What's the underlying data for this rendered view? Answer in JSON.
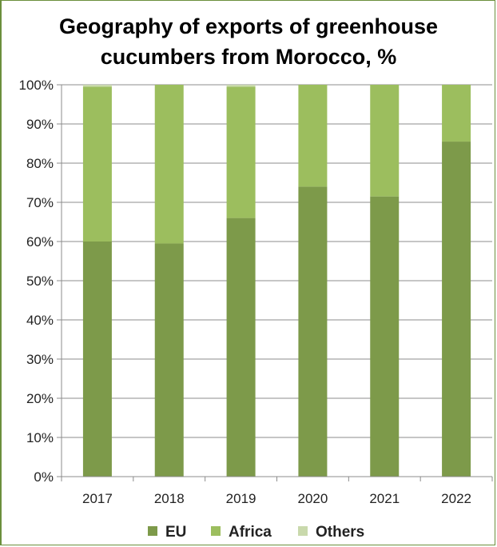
{
  "chart_data": {
    "type": "bar",
    "stacked": true,
    "title_lines": [
      "Geography of exports of greenhouse",
      "cucumbers from Morocco, %"
    ],
    "xlabel": "",
    "ylabel": "",
    "categories": [
      "2017",
      "2018",
      "2019",
      "2020",
      "2021",
      "2022"
    ],
    "series": [
      {
        "name": "EU",
        "color": "#7d9a4a",
        "values": [
          60,
          59.5,
          66,
          74,
          71.5,
          85.5
        ]
      },
      {
        "name": "Africa",
        "color": "#9cbe5e",
        "values": [
          39.5,
          40.5,
          33.5,
          26,
          28.5,
          14.5
        ]
      },
      {
        "name": "Others",
        "color": "#c9d9ac",
        "values": [
          0.5,
          0,
          0.5,
          0,
          0,
          0
        ]
      }
    ],
    "ylim": [
      0,
      100
    ],
    "yticks": [
      "0%",
      "10%",
      "20%",
      "30%",
      "40%",
      "50%",
      "60%",
      "70%",
      "80%",
      "90%",
      "100%"
    ],
    "grid": true,
    "legend_position": "bottom"
  }
}
